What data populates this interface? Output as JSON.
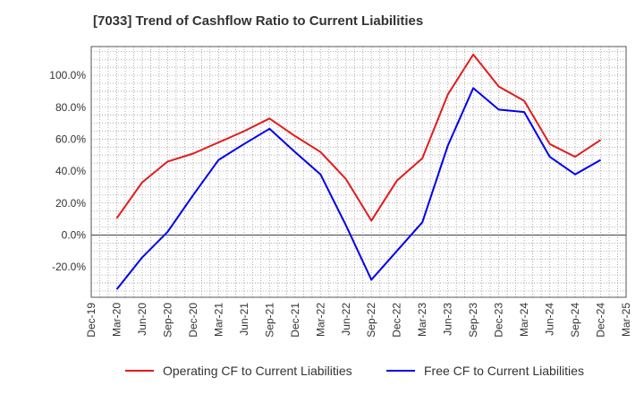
{
  "chart_data": {
    "type": "line",
    "title": "[7033]  Trend of Cashflow Ratio to Current Liabilities",
    "xlabel": "",
    "ylabel": "",
    "x_tick_labels": [
      "Dec-19",
      "Mar-20",
      "Jun-20",
      "Sep-20",
      "Dec-20",
      "Mar-21",
      "Jun-21",
      "Sep-21",
      "Dec-21",
      "Mar-22",
      "Jun-22",
      "Sep-22",
      "Dec-22",
      "Mar-23",
      "Jun-23",
      "Sep-23",
      "Dec-23",
      "Mar-24",
      "Jun-24",
      "Sep-24",
      "Dec-24",
      "Mar-25"
    ],
    "x": [
      "Mar-20",
      "Apr-20",
      "May-20",
      "Jun-20",
      "Jul-20",
      "Aug-20",
      "Sep-20",
      "Oct-20",
      "Nov-20",
      "Dec-20",
      "Jan-21",
      "Feb-21",
      "Mar-21",
      "Apr-21",
      "May-21",
      "Jun-21",
      "Jul-21",
      "Aug-21",
      "Sep-21",
      "Oct-21",
      "Nov-21",
      "Dec-21",
      "Jan-22",
      "Feb-22",
      "Mar-22",
      "Apr-22",
      "May-22",
      "Jun-22",
      "Jul-22",
      "Aug-22",
      "Sep-22",
      "Oct-22",
      "Nov-22",
      "Dec-22",
      "Jan-23",
      "Feb-23",
      "Mar-23",
      "Apr-23",
      "May-23",
      "Jun-23",
      "Jul-23",
      "Aug-23",
      "Sep-23",
      "Oct-23",
      "Nov-23",
      "Dec-23",
      "Jan-24",
      "Feb-24",
      "Mar-24",
      "Apr-24",
      "May-24",
      "Jun-24",
      "Jul-24",
      "Aug-24",
      "Sep-24",
      "Oct-24",
      "Nov-24",
      "Dec-24"
    ],
    "y_ticks": [
      -20,
      0,
      20,
      40,
      60,
      80,
      100
    ],
    "y_tick_labels": [
      "-20.0%",
      "0.0%",
      "20.0%",
      "40.0%",
      "60.0%",
      "80.0%",
      "100.0%"
    ],
    "ylim": [
      -39,
      118
    ],
    "grid": true,
    "legend_position": "bottom",
    "series": [
      {
        "name": "Operating CF to Current Liabilities",
        "color": "#e41a1c",
        "x": [
          "Mar-20",
          "Jun-20",
          "Sep-20",
          "Dec-20",
          "Mar-21",
          "Jun-21",
          "Sep-21",
          "Dec-21",
          "Mar-22",
          "Jun-22",
          "Sep-22",
          "Dec-22",
          "Mar-23",
          "Jun-23",
          "Sep-23",
          "Dec-23",
          "Mar-24",
          "Jun-24",
          "Sep-24",
          "Dec-24"
        ],
        "values": [
          10.5,
          33.0,
          46.0,
          51.0,
          58.0,
          65.0,
          73.0,
          62.0,
          52.0,
          35.0,
          9.0,
          34.0,
          48.0,
          88.0,
          113.0,
          93.0,
          84.0,
          57.0,
          49.0,
          59.5
        ]
      },
      {
        "name": "Free CF to Current Liabilities",
        "color": "#0000ee",
        "x": [
          "Mar-20",
          "Jun-20",
          "Sep-20",
          "Dec-20",
          "Mar-21",
          "Jun-21",
          "Sep-21",
          "Dec-21",
          "Mar-22",
          "Jun-22",
          "Sep-22",
          "Dec-22",
          "Mar-23",
          "Jun-23",
          "Sep-23",
          "Dec-23",
          "Mar-24",
          "Jun-24",
          "Sep-24",
          "Dec-24"
        ],
        "values": [
          -34.0,
          -14.0,
          2.0,
          25.0,
          47.0,
          57.0,
          66.5,
          52.0,
          38.0,
          6.0,
          -28.0,
          -10.0,
          8.0,
          56.0,
          92.0,
          78.5,
          77.0,
          49.0,
          38.0,
          47.0
        ]
      }
    ]
  }
}
